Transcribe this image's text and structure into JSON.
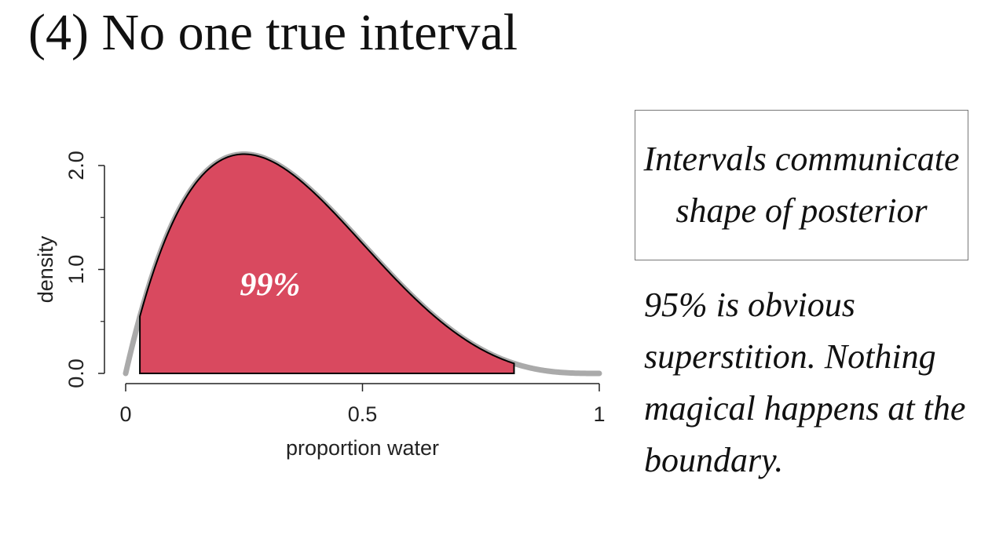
{
  "slide": {
    "title": "(4) No one true interval",
    "callout": "Intervals communicate shape of posterior",
    "note": "95% is obvious superstition. Nothing magical happens at the boundary."
  },
  "chart_data": {
    "type": "area",
    "xlabel": "proportion water",
    "ylabel": "density",
    "xlim": [
      0,
      1
    ],
    "ylim": [
      0,
      2.0
    ],
    "x_ticks": [
      0,
      0.5,
      1
    ],
    "x_tick_labels": [
      "0",
      "0.5",
      "1"
    ],
    "y_ticks": [
      0,
      1.0,
      2.0
    ],
    "y_tick_labels": [
      "0.0",
      "1.0",
      "2.0"
    ],
    "y_minor_ticks": [
      0.5,
      1.5
    ],
    "distribution": {
      "family": "beta",
      "alpha": 2,
      "beta": 4
    },
    "shaded_interval": {
      "lower": 0.03,
      "upper": 0.82,
      "label": "99%"
    },
    "grid": false,
    "colors": {
      "fill": "#d9495f",
      "curve": "#aaaaaa",
      "outline": "#000000",
      "label": "#ffffff"
    }
  }
}
